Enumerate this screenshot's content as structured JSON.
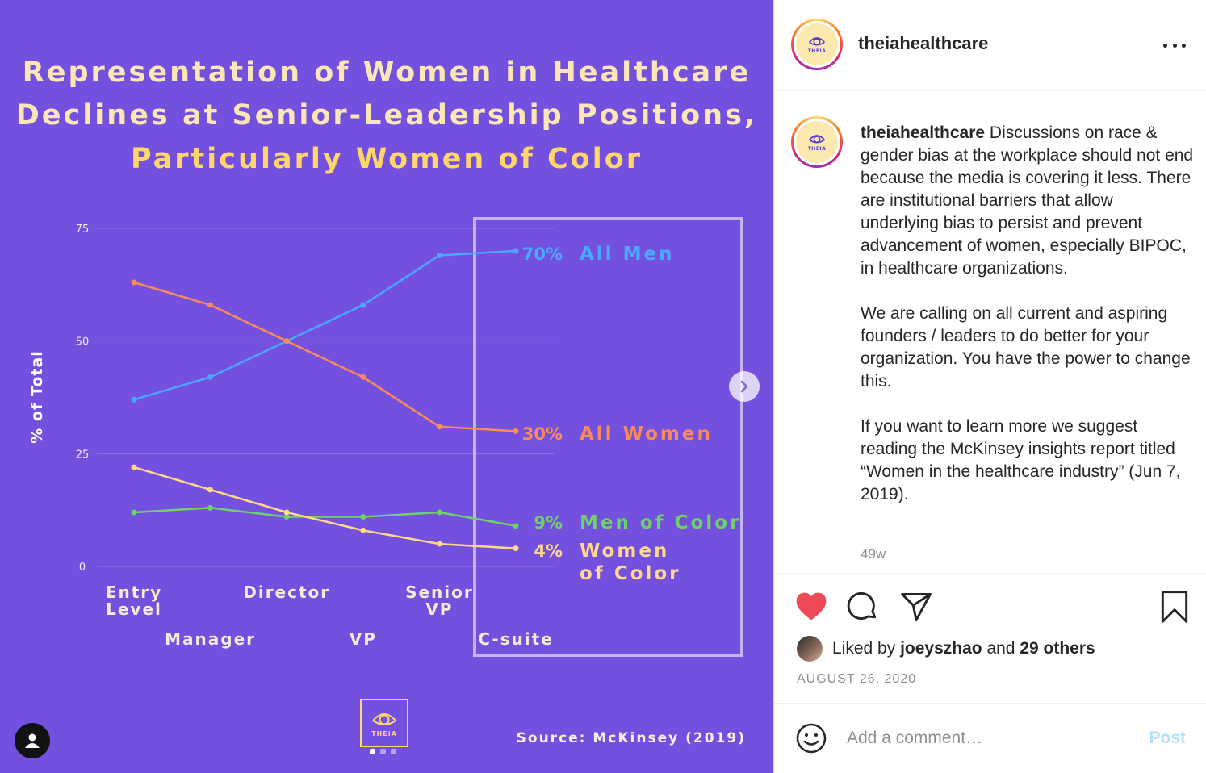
{
  "post": {
    "title_lines": [
      "Representation of Women in Healthcare",
      "Declines at Senior-Leadership Positions,",
      "Particularly Women of Color"
    ],
    "source": "Source: McKinsey (2019)",
    "logo_text": "THEIA",
    "carousel": {
      "count": 3,
      "active": 1
    }
  },
  "chart_data": {
    "type": "line",
    "title": "Representation of Women in Healthcare Declines at Senior-Leadership Positions, Particularly Women of Color",
    "ylabel": "% of Total",
    "xlabel": "",
    "ylim": [
      0,
      75
    ],
    "yticks": [
      0,
      25,
      50,
      75
    ],
    "categories": [
      "Entry Level",
      "Manager",
      "Director",
      "VP",
      "Senior VP",
      "C-suite"
    ],
    "highlighted_category": "C-suite",
    "series": [
      {
        "name": "All Men",
        "end_label": "70%",
        "color": "#4aa8ff",
        "values": [
          37,
          42,
          50,
          58,
          69,
          70
        ]
      },
      {
        "name": "All Women",
        "end_label": "30%",
        "color": "#f98a5a",
        "values": [
          63,
          58,
          50,
          42,
          31,
          30
        ]
      },
      {
        "name": "Men of Color",
        "end_label": "9%",
        "color": "#6fd16a",
        "values": [
          12,
          13,
          11,
          11,
          12,
          9
        ]
      },
      {
        "name": "Women of Color",
        "end_label": "4%",
        "color": "#ffd98a",
        "values": [
          22,
          17,
          12,
          8,
          5,
          4
        ]
      }
    ]
  },
  "sidebar": {
    "username": "theiahealthcare",
    "avatar_text": "THEIA",
    "caption_paragraphs": [
      "Discussions on race & gender bias at the workplace should not end because the media is covering it less. There are institutional barriers that allow underlying bias to persist and prevent advancement of women, especially BIPOC, in healthcare organizations.",
      "We are calling on all current and aspiring founders / leaders to do better for your organization. You have the power to change this.",
      "If you want to learn more we suggest reading the McKinsey insights report titled “Women in the healthcare industry” (Jun 7, 2019)."
    ],
    "post_age": "49w",
    "likes": {
      "prefix": "Liked by",
      "user": "joeyszhao",
      "middle": "and",
      "others": "29 others"
    },
    "date": "AUGUST 26, 2020",
    "comment_placeholder": "Add a comment…",
    "post_button": "Post"
  },
  "colors": {
    "background_purple": "#7350dd",
    "like_red": "#ed4956",
    "post_button_blue": "#b2dffc"
  }
}
